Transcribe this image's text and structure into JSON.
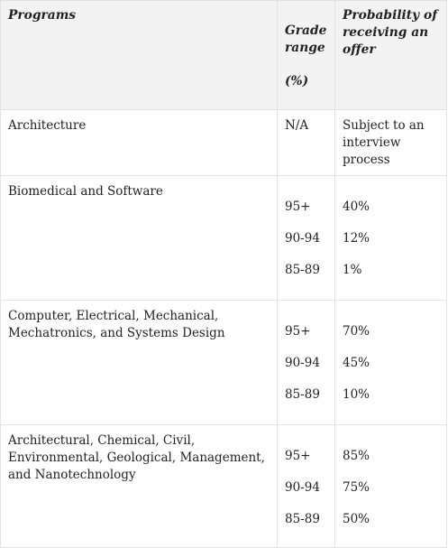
{
  "table": {
    "headers": {
      "programs": "Programs",
      "grade_range": "Grade range",
      "grade_unit": "(%)",
      "probability": "Probability of receiving an offer"
    },
    "rows": [
      {
        "program": "Architecture",
        "grade": "N/A",
        "probability": "Subject to an interview process"
      },
      {
        "program": "Biomedical and Software",
        "grades": [
          "95+",
          "90-94",
          "85-89"
        ],
        "probabilities": [
          "40%",
          "12%",
          "1%"
        ]
      },
      {
        "program": "Computer, Electrical, Mechanical, Mechatronics, and Systems Design",
        "grades": [
          "95+",
          "90-94",
          "85-89"
        ],
        "probabilities": [
          "70%",
          "45%",
          "10%"
        ]
      },
      {
        "program": "Architectural, Chemical, Civil, Environmental, Geological, Management, and Nanotechnology",
        "grades": [
          "95+",
          "90-94",
          "85-89"
        ],
        "probabilities": [
          "85%",
          "75%",
          "50%"
        ]
      }
    ]
  }
}
